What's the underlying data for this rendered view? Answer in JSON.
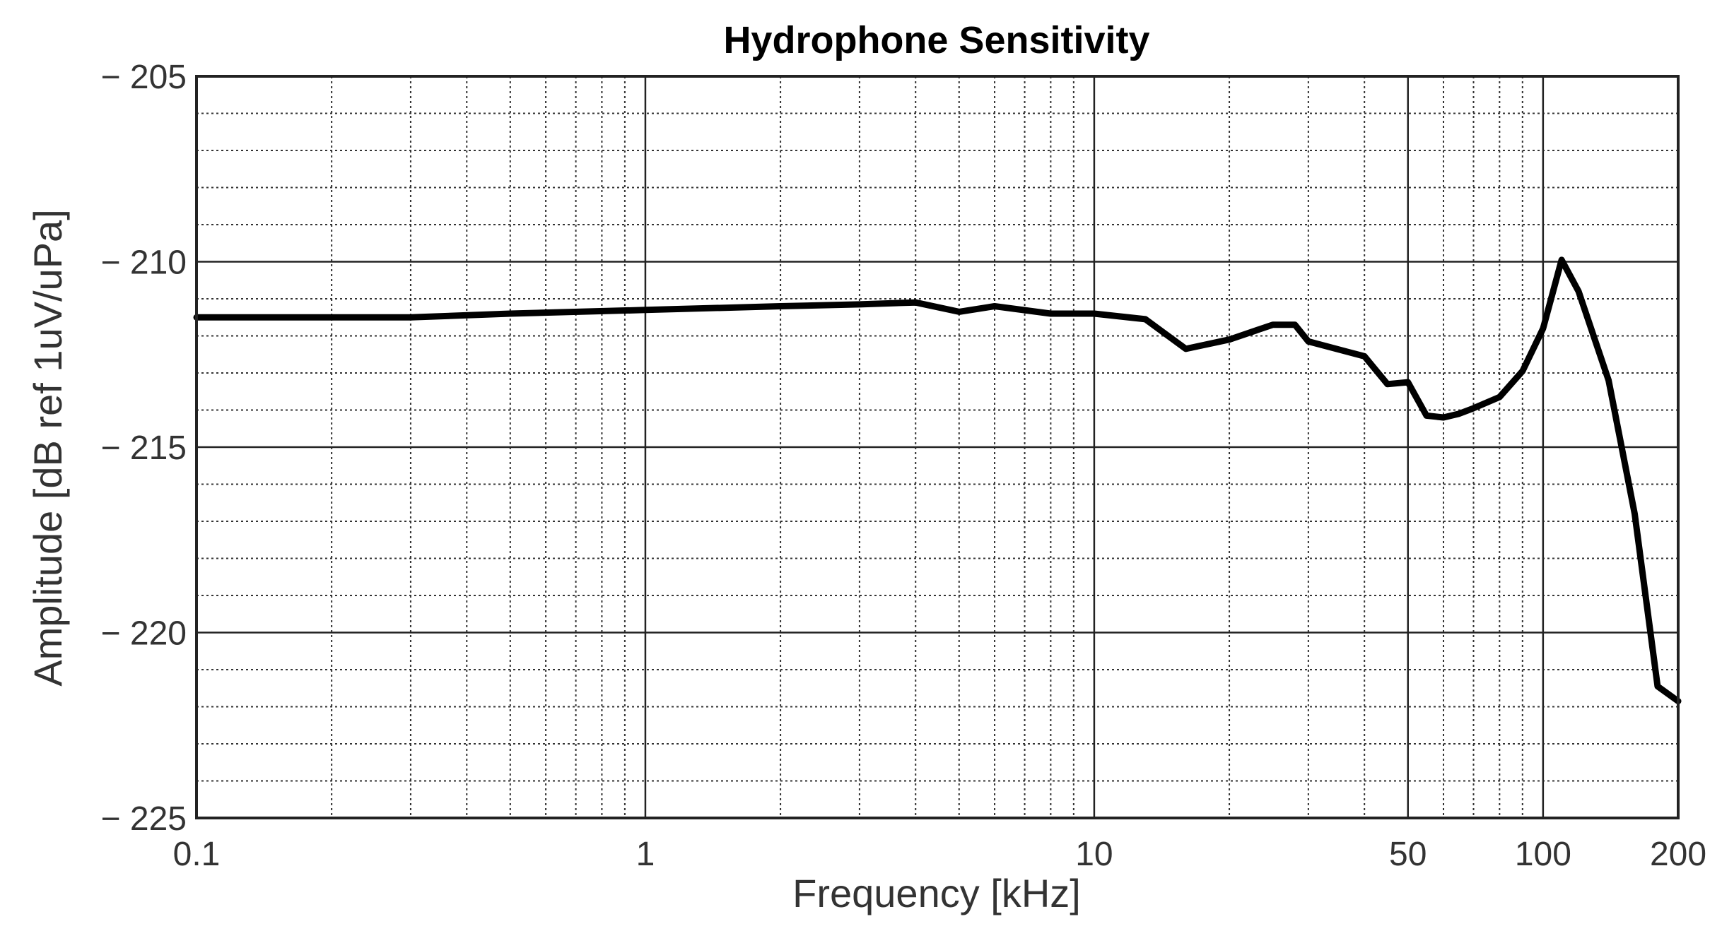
{
  "chart_data": {
    "type": "line",
    "title": "Hydrophone Sensitivity",
    "xlabel": "Frequency [kHz]",
    "ylabel": "Amplitude [dB ref 1uV/uPa]",
    "x_scale": "log",
    "xlim": [
      0.1,
      200
    ],
    "ylim": [
      -225,
      -205
    ],
    "x_ticks": [
      0.1,
      1,
      10,
      50,
      100,
      200
    ],
    "x_tick_labels": [
      "0.1",
      "1",
      "10",
      "50",
      "100",
      "200"
    ],
    "y_ticks": [
      -205,
      -210,
      -215,
      -220,
      -225
    ],
    "y_tick_labels": [
      "− 205",
      "− 210",
      "− 215",
      "− 220",
      "− 225"
    ],
    "grid": true,
    "x_minor_ticks": [
      0.2,
      0.3,
      0.4,
      0.5,
      0.6,
      0.7,
      0.8,
      0.9,
      2,
      3,
      4,
      5,
      6,
      7,
      8,
      9,
      20,
      30,
      40,
      60,
      70,
      80,
      90
    ],
    "y_minor_step": 1,
    "series": [
      {
        "color": "#000000",
        "x": [
          0.1,
          0.2,
          0.3,
          0.5,
          1,
          2,
          3,
          4,
          5,
          6,
          8,
          10,
          13,
          16,
          20,
          25,
          28,
          30,
          40,
          45,
          50,
          55,
          60,
          65,
          70,
          80,
          90,
          100,
          110,
          120,
          140,
          160,
          180,
          200
        ],
        "y": [
          -211.5,
          -211.5,
          -211.5,
          -211.4,
          -211.3,
          -211.2,
          -211.15,
          -211.1,
          -211.35,
          -211.2,
          -211.4,
          -211.4,
          -211.55,
          -212.35,
          -212.1,
          -211.7,
          -211.7,
          -212.15,
          -212.55,
          -213.3,
          -213.25,
          -214.15,
          -214.2,
          -214.1,
          -213.95,
          -213.65,
          -212.95,
          -211.8,
          -209.95,
          -210.8,
          -213.2,
          -216.8,
          -221.45,
          -221.85
        ]
      }
    ]
  }
}
